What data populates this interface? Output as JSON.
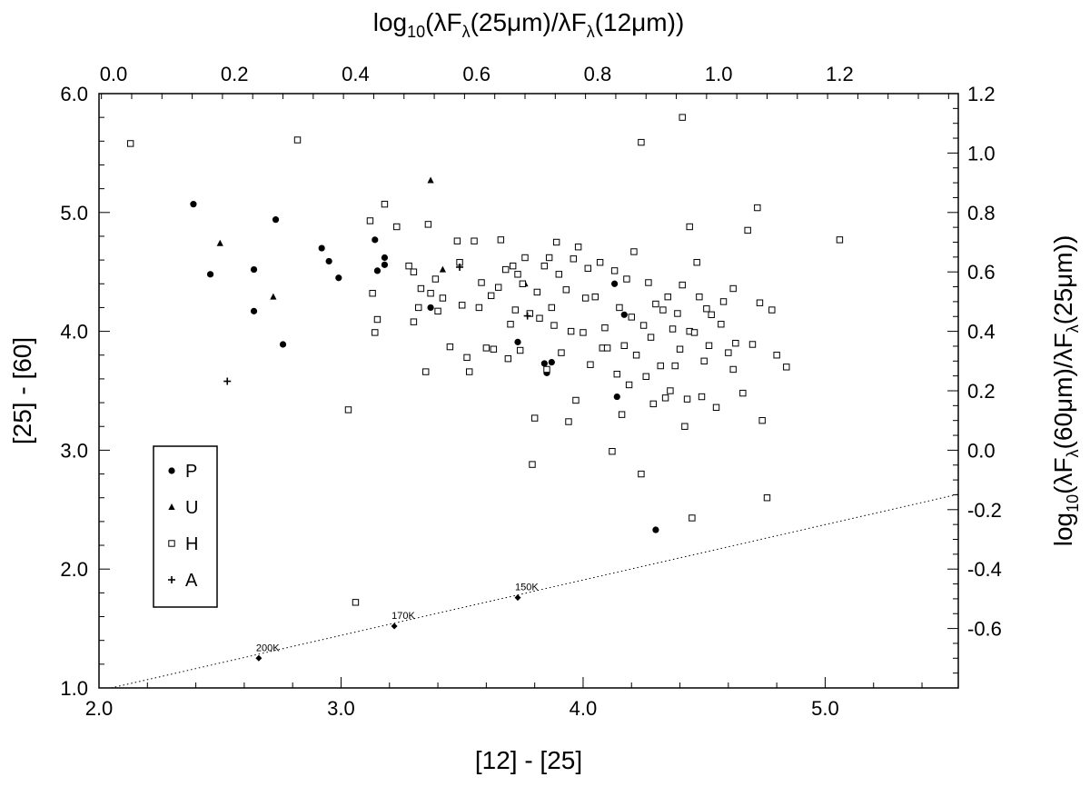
{
  "chart_data": {
    "type": "scatter",
    "xlabel": "[12] - [25]",
    "ylabel": "[25] - [60]",
    "top_axis_label": "log10(λFλ(25μm)/λFλ(12μm))",
    "right_axis_label": "log10(λFλ(60μm)/λFλ(25μm))",
    "xlim": [
      2.0,
      5.55
    ],
    "ylim": [
      1.0,
      6.0
    ],
    "x_ticks": [
      "2.0",
      "3.0",
      "4.0",
      "5.0"
    ],
    "y_ticks": [
      "1.0",
      "2.0",
      "3.0",
      "4.0",
      "5.0",
      "6.0"
    ],
    "top_ticks": [
      "0.0",
      "0.2",
      "0.4",
      "0.6",
      "0.8",
      "1.0",
      "1.2"
    ],
    "right_ticks": [
      "-0.6",
      "-0.4",
      "-0.2",
      "0.0",
      "0.2",
      "0.4",
      "0.6",
      "0.8",
      "1.0",
      "1.2"
    ],
    "legend": [
      {
        "symbol": "circle",
        "label": "P"
      },
      {
        "symbol": "triangle",
        "label": "U"
      },
      {
        "symbol": "square",
        "label": "H"
      },
      {
        "symbol": "plus",
        "label": "A"
      }
    ],
    "legend_position": "left",
    "blackbody_curve": {
      "style": "dotted",
      "points": [
        [
          2.05,
          1.0
        ],
        [
          5.55,
          2.63
        ]
      ],
      "markers": [
        {
          "x": 2.66,
          "y": 1.25,
          "label": "200K"
        },
        {
          "x": 3.22,
          "y": 1.52,
          "label": "170K"
        },
        {
          "x": 3.73,
          "y": 1.76,
          "label": "150K"
        }
      ]
    },
    "series": [
      {
        "name": "P",
        "symbol": "circle",
        "points": [
          [
            2.39,
            5.07
          ],
          [
            2.46,
            4.48
          ],
          [
            2.64,
            4.52
          ],
          [
            2.64,
            4.17
          ],
          [
            2.73,
            4.94
          ],
          [
            2.76,
            3.89
          ],
          [
            2.92,
            4.7
          ],
          [
            2.95,
            4.59
          ],
          [
            2.99,
            4.45
          ],
          [
            3.14,
            4.77
          ],
          [
            3.15,
            4.51
          ],
          [
            3.18,
            4.56
          ],
          [
            3.18,
            4.62
          ],
          [
            3.37,
            4.2
          ],
          [
            3.73,
            3.91
          ],
          [
            3.84,
            3.73
          ],
          [
            3.85,
            3.65
          ],
          [
            3.87,
            3.74
          ],
          [
            4.13,
            4.4
          ],
          [
            4.14,
            3.45
          ],
          [
            4.17,
            4.14
          ],
          [
            4.3,
            2.33
          ]
        ]
      },
      {
        "name": "U",
        "symbol": "triangle",
        "points": [
          [
            2.5,
            4.74
          ],
          [
            2.72,
            4.29
          ],
          [
            3.37,
            5.27
          ],
          [
            3.42,
            4.52
          ],
          [
            3.5,
            4.22
          ],
          [
            3.76,
            4.4
          ]
        ]
      },
      {
        "name": "H",
        "symbol": "square",
        "points": [
          [
            2.13,
            5.58
          ],
          [
            2.82,
            5.61
          ],
          [
            3.03,
            3.34
          ],
          [
            3.06,
            1.72
          ],
          [
            3.12,
            4.93
          ],
          [
            3.13,
            4.32
          ],
          [
            3.14,
            3.99
          ],
          [
            3.15,
            4.1
          ],
          [
            3.18,
            5.07
          ],
          [
            3.23,
            4.88
          ],
          [
            3.28,
            4.55
          ],
          [
            3.3,
            4.5
          ],
          [
            3.3,
            4.08
          ],
          [
            3.32,
            4.2
          ],
          [
            3.33,
            4.36
          ],
          [
            3.35,
            3.66
          ],
          [
            3.36,
            4.9
          ],
          [
            3.37,
            4.32
          ],
          [
            3.39,
            4.44
          ],
          [
            3.4,
            4.17
          ],
          [
            3.42,
            4.28
          ],
          [
            3.45,
            3.87
          ],
          [
            3.48,
            4.76
          ],
          [
            3.49,
            4.58
          ],
          [
            3.5,
            4.22
          ],
          [
            3.52,
            3.78
          ],
          [
            3.53,
            3.66
          ],
          [
            3.55,
            4.76
          ],
          [
            3.57,
            4.2
          ],
          [
            3.58,
            4.41
          ],
          [
            3.6,
            3.86
          ],
          [
            3.62,
            4.3
          ],
          [
            3.63,
            3.85
          ],
          [
            3.65,
            4.37
          ],
          [
            3.66,
            4.77
          ],
          [
            3.68,
            4.52
          ],
          [
            3.69,
            3.77
          ],
          [
            3.7,
            4.06
          ],
          [
            3.71,
            4.55
          ],
          [
            3.72,
            4.18
          ],
          [
            3.73,
            4.48
          ],
          [
            3.74,
            3.84
          ],
          [
            3.75,
            4.4
          ],
          [
            3.76,
            4.62
          ],
          [
            3.78,
            4.15
          ],
          [
            3.79,
            2.88
          ],
          [
            3.8,
            3.27
          ],
          [
            3.81,
            4.33
          ],
          [
            3.82,
            4.11
          ],
          [
            3.84,
            4.55
          ],
          [
            3.85,
            3.68
          ],
          [
            3.86,
            4.62
          ],
          [
            3.87,
            4.2
          ],
          [
            3.88,
            4.05
          ],
          [
            3.89,
            4.75
          ],
          [
            3.9,
            4.48
          ],
          [
            3.91,
            3.82
          ],
          [
            3.93,
            4.35
          ],
          [
            3.94,
            3.24
          ],
          [
            3.95,
            4.0
          ],
          [
            3.96,
            4.61
          ],
          [
            3.97,
            3.42
          ],
          [
            3.98,
            4.71
          ],
          [
            4.0,
            3.99
          ],
          [
            4.01,
            4.28
          ],
          [
            4.02,
            4.53
          ],
          [
            4.03,
            3.72
          ],
          [
            4.05,
            4.29
          ],
          [
            4.07,
            4.58
          ],
          [
            4.08,
            3.86
          ],
          [
            4.09,
            4.03
          ],
          [
            4.1,
            3.86
          ],
          [
            4.12,
            2.99
          ],
          [
            4.13,
            4.51
          ],
          [
            4.14,
            3.64
          ],
          [
            4.15,
            4.2
          ],
          [
            4.16,
            3.3
          ],
          [
            4.17,
            3.88
          ],
          [
            4.18,
            4.44
          ],
          [
            4.19,
            3.55
          ],
          [
            4.2,
            4.12
          ],
          [
            4.21,
            4.67
          ],
          [
            4.22,
            3.8
          ],
          [
            4.24,
            2.8
          ],
          [
            4.25,
            4.05
          ],
          [
            4.26,
            3.62
          ],
          [
            4.27,
            4.41
          ],
          [
            4.28,
            3.95
          ],
          [
            4.29,
            3.39
          ],
          [
            4.3,
            4.23
          ],
          [
            4.32,
            3.71
          ],
          [
            4.33,
            4.18
          ],
          [
            4.34,
            3.44
          ],
          [
            4.35,
            4.29
          ],
          [
            4.36,
            3.5
          ],
          [
            4.37,
            4.02
          ],
          [
            4.38,
            3.71
          ],
          [
            4.39,
            4.15
          ],
          [
            4.4,
            3.85
          ],
          [
            4.41,
            4.39
          ],
          [
            4.42,
            3.2
          ],
          [
            4.43,
            3.43
          ],
          [
            4.44,
            4.0
          ],
          [
            4.45,
            2.43
          ],
          [
            4.46,
            3.99
          ],
          [
            4.47,
            4.58
          ],
          [
            4.48,
            4.29
          ],
          [
            4.49,
            3.45
          ],
          [
            4.5,
            3.75
          ],
          [
            4.51,
            4.19
          ],
          [
            4.52,
            3.88
          ],
          [
            4.53,
            4.14
          ],
          [
            4.55,
            3.36
          ],
          [
            4.57,
            4.06
          ],
          [
            4.58,
            4.25
          ],
          [
            4.6,
            3.82
          ],
          [
            4.62,
            4.36
          ],
          [
            4.66,
            3.48
          ],
          [
            4.68,
            4.85
          ],
          [
            4.7,
            3.89
          ],
          [
            4.72,
            5.04
          ],
          [
            4.73,
            4.24
          ],
          [
            4.74,
            3.25
          ],
          [
            4.76,
            2.6
          ],
          [
            4.78,
            4.18
          ],
          [
            4.8,
            3.8
          ],
          [
            4.24,
            5.59
          ],
          [
            4.41,
            5.8
          ],
          [
            4.44,
            4.88
          ],
          [
            4.62,
            3.68
          ],
          [
            4.63,
            3.9
          ],
          [
            4.84,
            3.7
          ],
          [
            5.06,
            4.77
          ]
        ]
      },
      {
        "name": "A",
        "symbol": "plus",
        "points": [
          [
            2.53,
            3.58
          ],
          [
            3.49,
            4.54
          ],
          [
            3.77,
            4.13
          ]
        ]
      }
    ]
  }
}
